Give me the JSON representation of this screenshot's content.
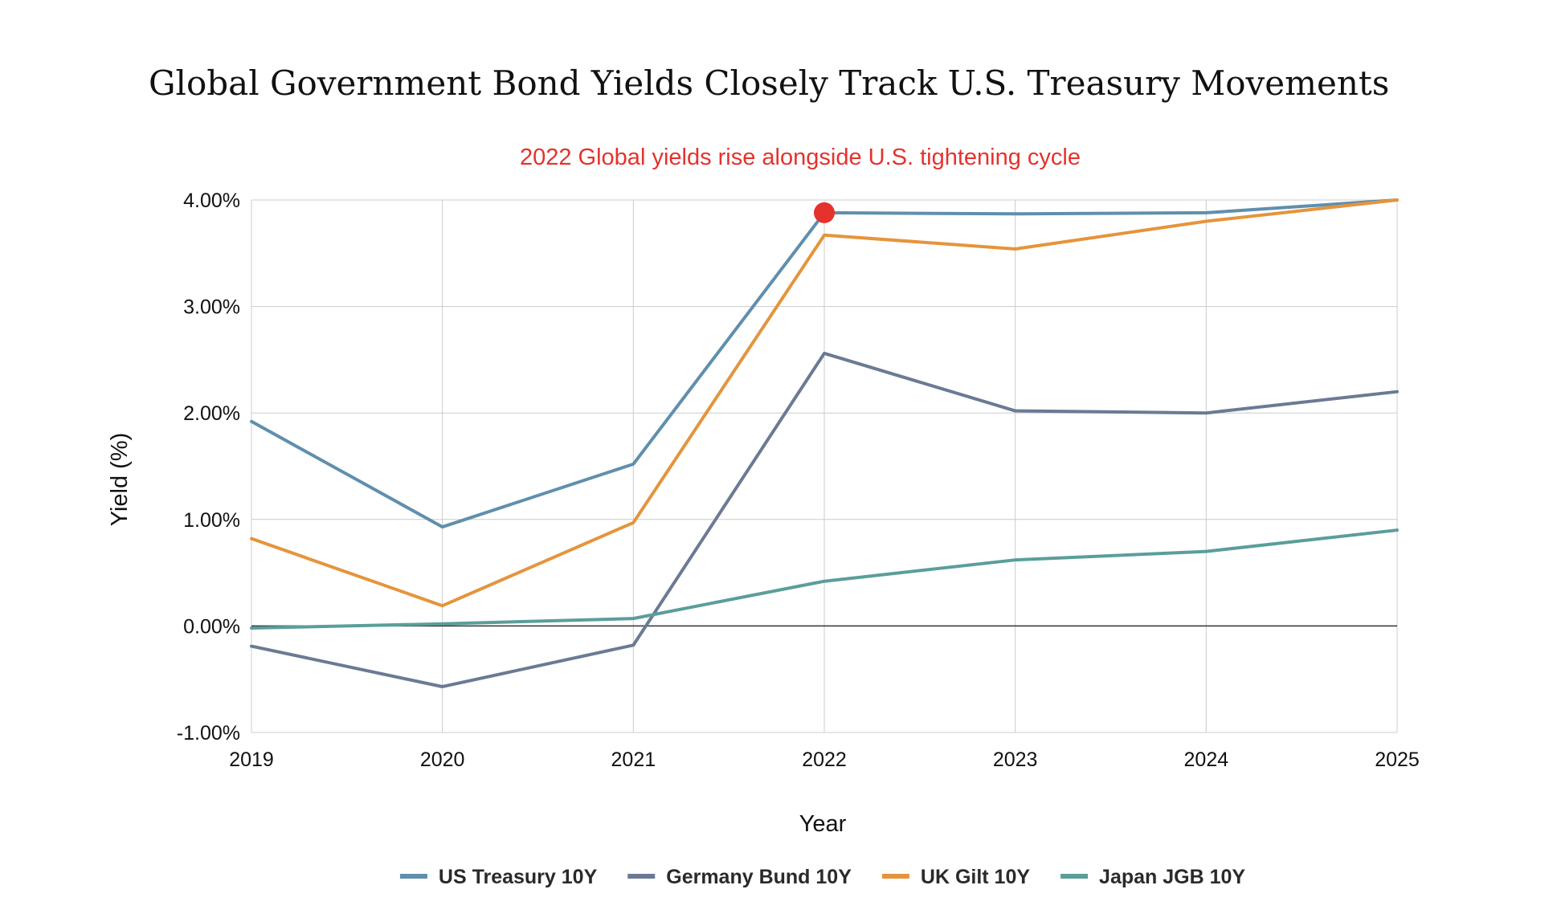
{
  "chart_data": {
    "type": "line",
    "title": "Global Government Bond Yields Closely Track U.S. Treasury Movements",
    "annotation": {
      "text": "2022 Global yields rise alongside U.S. tightening cycle",
      "x": "2022",
      "series": "US Treasury 10Y",
      "y": 3.88,
      "color": "#e5322d"
    },
    "xlabel": "Year",
    "ylabel": "Yield (%)",
    "categories": [
      "2019",
      "2020",
      "2021",
      "2022",
      "2023",
      "2024",
      "2025"
    ],
    "ylim": [
      -1,
      4
    ],
    "yticks": [
      -1,
      0,
      1,
      2,
      3,
      4
    ],
    "ytick_labels": [
      "-1.00%",
      "0.00%",
      "1.00%",
      "2.00%",
      "3.00%",
      "4.00%"
    ],
    "grid": true,
    "legend_position": "bottom",
    "series": [
      {
        "name": "US Treasury 10Y",
        "color": "#5f8fad",
        "values": [
          1.92,
          0.93,
          1.52,
          3.88,
          3.87,
          3.88,
          4.0
        ]
      },
      {
        "name": "Germany Bund 10Y",
        "color": "#6b7a94",
        "values": [
          -0.19,
          -0.57,
          -0.18,
          2.56,
          2.02,
          2.0,
          2.2
        ]
      },
      {
        "name": "UK Gilt 10Y",
        "color": "#e5943c",
        "values": [
          0.82,
          0.19,
          0.97,
          3.67,
          3.54,
          3.8,
          4.0
        ]
      },
      {
        "name": "Japan JGB 10Y",
        "color": "#5a9e9a",
        "values": [
          -0.02,
          0.02,
          0.07,
          0.42,
          0.62,
          0.7,
          0.9
        ]
      }
    ],
    "colors": {
      "grid": "#cccccc",
      "zero_line": "#333333"
    }
  }
}
